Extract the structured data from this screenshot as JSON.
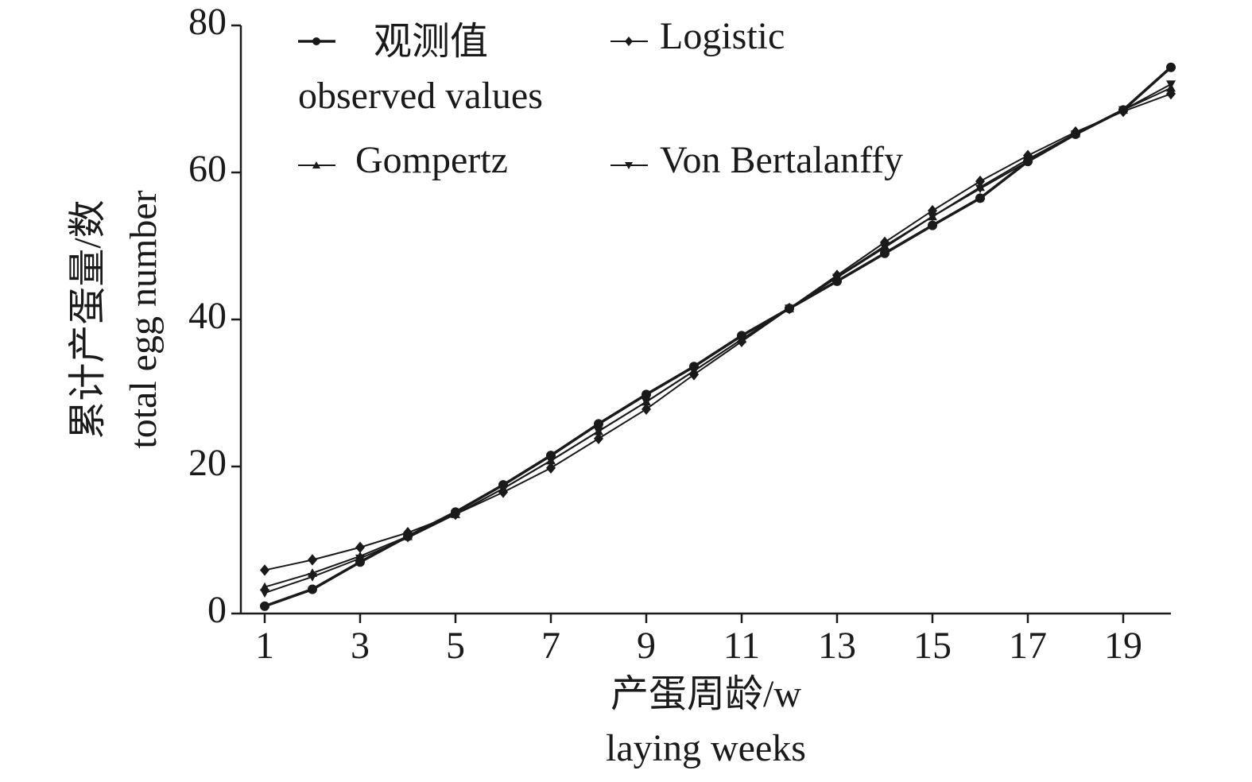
{
  "chart_data": {
    "type": "line",
    "xlabel": [
      "产蛋周龄/w",
      "laying weeks"
    ],
    "ylabel": [
      "累计产蛋量/数",
      "total egg number"
    ],
    "x": [
      1,
      2,
      3,
      4,
      5,
      6,
      7,
      8,
      9,
      10,
      11,
      12,
      13,
      14,
      15,
      16,
      17,
      18,
      19,
      20
    ],
    "xlim": [
      0.5,
      20
    ],
    "xticks": [
      1,
      3,
      5,
      7,
      9,
      11,
      13,
      15,
      17,
      19
    ],
    "ylim": [
      0,
      80
    ],
    "yticks": [
      0,
      20,
      40,
      60,
      80
    ],
    "series": [
      {
        "name": [
          "观测值",
          "observed values"
        ],
        "color": "#1a1a1a",
        "marker": "circle",
        "width": 3.5,
        "values": [
          1,
          3.3,
          7,
          10.5,
          13.8,
          17.5,
          21.5,
          25.8,
          29.8,
          33.6,
          37.8,
          41.5,
          45.2,
          49,
          52.8,
          56.5,
          61.5,
          65.2,
          68.5,
          74.3
        ]
      },
      {
        "name": "Logistic",
        "color": "#1a1a1a",
        "marker": "diamond",
        "width": 2,
        "values": [
          5.9,
          7.3,
          9,
          11,
          13.5,
          16.5,
          19.8,
          23.8,
          27.8,
          32.5,
          37,
          41.5,
          46,
          50.5,
          54.8,
          58.8,
          62.3,
          65.5,
          68.3,
          70.7
        ]
      },
      {
        "name": "Gompertz",
        "color": "#1a1a1a",
        "marker": "triangle",
        "width": 2,
        "values": [
          3.6,
          5.5,
          7.8,
          10.5,
          13.5,
          17,
          20.8,
          24.8,
          28.8,
          33,
          37.3,
          41.5,
          45.8,
          50,
          54,
          58,
          61.8,
          65.3,
          68.5,
          71.5
        ]
      },
      {
        "name": "Von Bertalanffy",
        "color": "#1a1a1a",
        "marker": "triangle-down",
        "width": 2,
        "values": [
          2.8,
          5,
          7.5,
          10.3,
          13.5,
          17,
          20.8,
          24.8,
          28.8,
          33,
          37.3,
          41.5,
          45.7,
          49.8,
          54,
          57.8,
          61.5,
          65.2,
          68.5,
          72
        ]
      }
    ]
  }
}
